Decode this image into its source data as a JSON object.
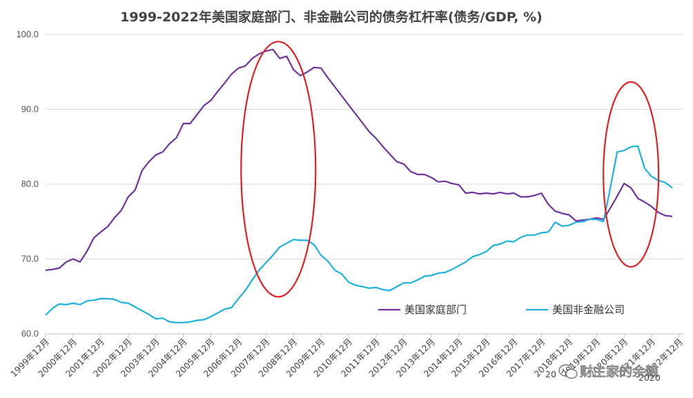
{
  "chart_data": {
    "type": "line",
    "title": "1999-2022年美国家庭部门、非金融公司的债务杠杆率(债务/GDP, %)",
    "xlabel": "",
    "ylabel": "",
    "ylim": [
      60,
      100
    ],
    "yticks": [
      "60.0",
      "70.0",
      "80.0",
      "90.0",
      "100.0"
    ],
    "grid": "horizontal",
    "legend_position": "bottom-right",
    "xticks": [
      "1999年12月",
      "2000年12月",
      "2001年12月",
      "2002年12月",
      "2003年12月",
      "2004年12月",
      "2005年12月",
      "2006年12月",
      "2007年12月",
      "2008年12月",
      "2009年12月",
      "2010年12月",
      "2011年12月",
      "2012年12月",
      "2013年12月",
      "2014年12月",
      "2015年12月",
      "2016年12月",
      "2017年12月",
      "2018年12月",
      "2019年12月",
      "2020年12月",
      "2021年12月",
      "2022年12月"
    ],
    "x_start": 1999.75,
    "x_end": 2022.9,
    "series": [
      {
        "name": "美国家庭部门",
        "color": "#7030A0",
        "x": [
          1999.75,
          2000.0,
          2000.25,
          2000.5,
          2000.75,
          2001.0,
          2001.25,
          2001.5,
          2001.75,
          2002.0,
          2002.25,
          2002.5,
          2002.75,
          2003.0,
          2003.25,
          2003.5,
          2003.75,
          2004.0,
          2004.25,
          2004.5,
          2004.75,
          2005.0,
          2005.25,
          2005.5,
          2005.75,
          2006.0,
          2006.25,
          2006.5,
          2006.75,
          2007.0,
          2007.25,
          2007.5,
          2007.75,
          2008.0,
          2008.25,
          2008.5,
          2008.75,
          2009.0,
          2009.25,
          2009.5,
          2009.75,
          2010.0,
          2010.25,
          2010.5,
          2010.75,
          2011.0,
          2011.25,
          2011.5,
          2011.75,
          2012.0,
          2012.25,
          2012.5,
          2012.75,
          2013.0,
          2013.25,
          2013.5,
          2013.75,
          2014.0,
          2014.25,
          2014.5,
          2014.75,
          2015.0,
          2015.25,
          2015.5,
          2015.75,
          2016.0,
          2016.25,
          2016.5,
          2016.75,
          2017.0,
          2017.25,
          2017.5,
          2017.75,
          2018.0,
          2018.25,
          2018.5,
          2018.75,
          2019.0,
          2019.25,
          2019.5,
          2019.75,
          2020.0,
          2020.25,
          2020.5,
          2020.75,
          2021.0,
          2021.25,
          2021.5,
          2021.75,
          2022.0,
          2022.25,
          2022.5
        ],
        "values": [
          68.5,
          68.6,
          68.8,
          69.6,
          70.0,
          69.6,
          71.0,
          72.8,
          73.6,
          74.3,
          75.5,
          76.5,
          78.3,
          79.2,
          81.8,
          83.0,
          83.9,
          84.3,
          85.4,
          86.2,
          88.1,
          88.1,
          89.3,
          90.5,
          91.2,
          92.4,
          93.5,
          94.7,
          95.5,
          95.8,
          96.8,
          97.4,
          97.8,
          98.0,
          96.8,
          97.1,
          95.3,
          94.5,
          95.0,
          95.6,
          95.5,
          94.2,
          93.0,
          91.8,
          90.6,
          89.4,
          88.2,
          87.0,
          86.1,
          85.0,
          84.0,
          83.0,
          82.7,
          81.7,
          81.3,
          81.3,
          80.9,
          80.3,
          80.4,
          80.1,
          79.9,
          78.8,
          78.9,
          78.7,
          78.8,
          78.7,
          78.9,
          78.7,
          78.8,
          78.3,
          78.3,
          78.5,
          78.8,
          77.3,
          76.4,
          76.1,
          75.9,
          75.1,
          75.2,
          75.3,
          75.5,
          75.3,
          76.8,
          78.4,
          80.1,
          79.5,
          78.1,
          77.6,
          77.0,
          76.2,
          75.8,
          75.7
        ]
      },
      {
        "name": "美国非金融公司",
        "color": "#1AB1E0",
        "x": [
          1999.75,
          2000.0,
          2000.25,
          2000.5,
          2000.75,
          2001.0,
          2001.25,
          2001.5,
          2001.75,
          2002.0,
          2002.25,
          2002.5,
          2002.75,
          2003.0,
          2003.25,
          2003.5,
          2003.75,
          2004.0,
          2004.25,
          2004.5,
          2004.75,
          2005.0,
          2005.25,
          2005.5,
          2005.75,
          2006.0,
          2006.25,
          2006.5,
          2006.75,
          2007.0,
          2007.25,
          2007.5,
          2007.75,
          2008.0,
          2008.25,
          2008.5,
          2008.75,
          2009.0,
          2009.25,
          2009.5,
          2009.75,
          2010.0,
          2010.25,
          2010.5,
          2010.75,
          2011.0,
          2011.25,
          2011.5,
          2011.75,
          2012.0,
          2012.25,
          2012.5,
          2012.75,
          2013.0,
          2013.25,
          2013.5,
          2013.75,
          2014.0,
          2014.25,
          2014.5,
          2014.75,
          2015.0,
          2015.25,
          2015.5,
          2015.75,
          2016.0,
          2016.25,
          2016.5,
          2016.75,
          2017.0,
          2017.25,
          2017.5,
          2017.75,
          2018.0,
          2018.25,
          2018.5,
          2018.75,
          2019.0,
          2019.25,
          2019.5,
          2019.75,
          2020.0,
          2020.25,
          2020.5,
          2020.75,
          2021.0,
          2021.25,
          2021.5,
          2021.75,
          2022.0,
          2022.25,
          2022.5
        ],
        "values": [
          62.5,
          63.4,
          64.0,
          63.9,
          64.1,
          63.9,
          64.4,
          64.5,
          64.7,
          64.7,
          64.6,
          64.2,
          64.1,
          63.6,
          63.1,
          62.6,
          62.0,
          62.1,
          61.6,
          61.5,
          61.5,
          61.6,
          61.8,
          61.9,
          62.3,
          62.8,
          63.3,
          63.5,
          64.7,
          65.8,
          67.2,
          68.5,
          69.5,
          70.5,
          71.6,
          72.1,
          72.6,
          72.5,
          72.5,
          71.9,
          70.5,
          69.7,
          68.5,
          68.0,
          66.9,
          66.5,
          66.3,
          66.1,
          66.2,
          65.9,
          65.8,
          66.3,
          66.8,
          66.8,
          67.2,
          67.7,
          67.8,
          68.1,
          68.2,
          68.6,
          69.1,
          69.6,
          70.3,
          70.6,
          71.0,
          71.8,
          72.0,
          72.4,
          72.3,
          72.9,
          73.2,
          73.2,
          73.5,
          73.6,
          74.9,
          74.4,
          74.5,
          74.9,
          75.0,
          75.3,
          75.3,
          75.0,
          79.5,
          84.3,
          84.5,
          85.0,
          85.1,
          82.1,
          81.0,
          80.5,
          80.2,
          79.5
        ]
      }
    ],
    "annotations": [
      {
        "shape": "ellipse",
        "color": "#E02020",
        "x_center": 2008.2,
        "y_center": 82.0
      },
      {
        "shape": "ellipse",
        "color": "#E02020",
        "x_center": 2021.0,
        "y_center": 81.3
      }
    ]
  },
  "watermark": {
    "icon": "wechat-icon",
    "text": "财主家的余粮",
    "text_partial_left": "20",
    "text_partial_right": "2020"
  }
}
